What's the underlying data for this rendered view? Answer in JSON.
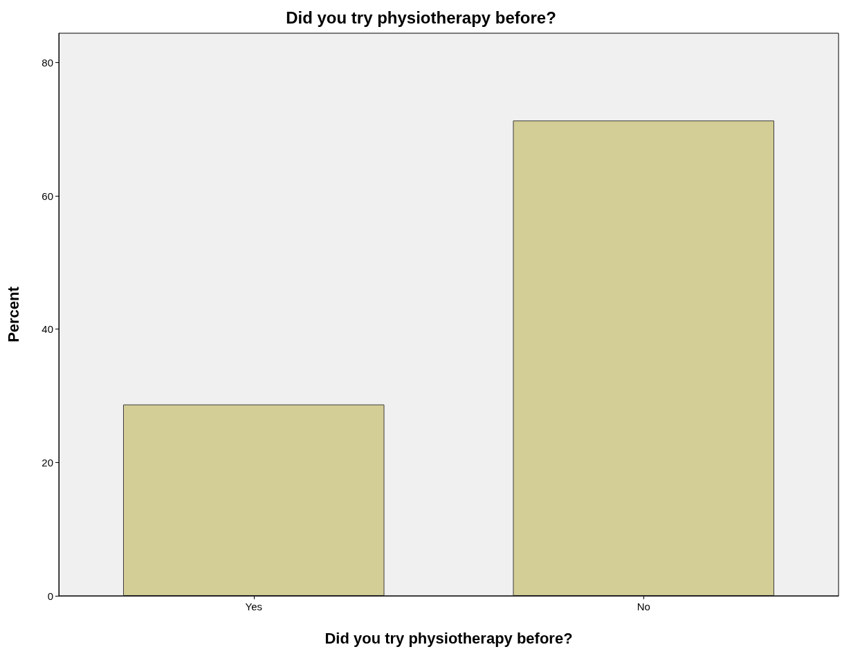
{
  "chart_data": {
    "type": "bar",
    "title": "Did you try physiotherapy before?",
    "xlabel": "Did you try physiotherapy before?",
    "ylabel": "Percent",
    "categories": [
      "Yes",
      "No"
    ],
    "values": [
      28.7,
      71.3
    ],
    "color": "#d3cd96",
    "ylim": [
      0,
      84.4
    ],
    "yticks": [
      0,
      20,
      40,
      60,
      80
    ],
    "grid": false
  }
}
